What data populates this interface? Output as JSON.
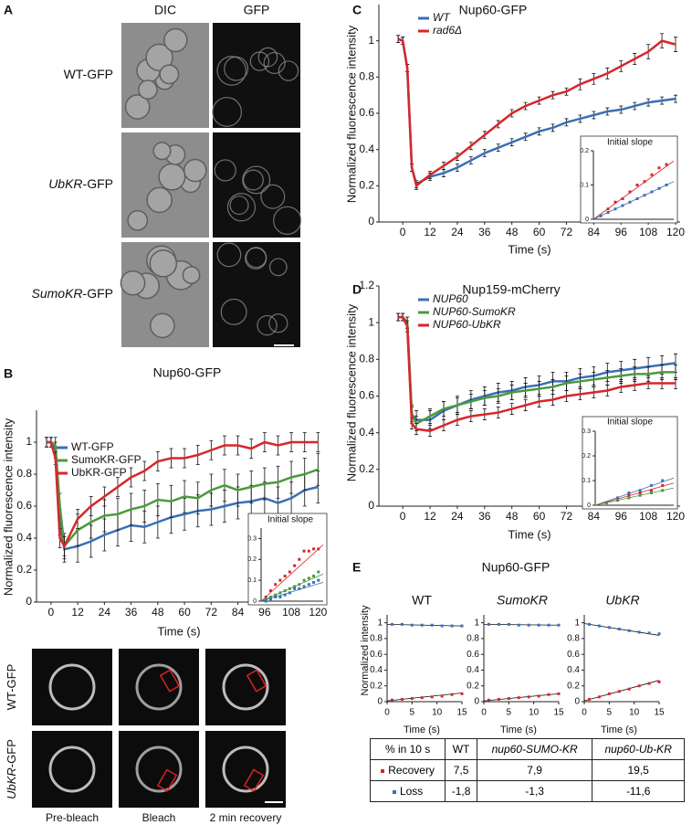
{
  "panel_letters": [
    "A",
    "B",
    "C",
    "D",
    "E"
  ],
  "panel_a": {
    "columns": [
      "DIC",
      "GFP"
    ],
    "rows": [
      {
        "italic": "",
        "rest": "WT-GFP"
      },
      {
        "italic": "UbKR",
        "rest": "-GFP"
      },
      {
        "italic": "SumoKR",
        "rest": "-GFP"
      }
    ]
  },
  "panel_b_images": {
    "rows": [
      {
        "italic": "",
        "rest": "WT-GFP"
      },
      {
        "italic": "UbKR",
        "rest": "-GFP"
      }
    ],
    "columns": [
      "Pre-bleach",
      "Bleach",
      "2 min recovery"
    ]
  },
  "panel_e_title": "Nup60-GFP",
  "table": {
    "header": [
      "% in 10 s",
      "WT",
      "nup60-SUMO-KR",
      "nup60-Ub-KR"
    ],
    "rows": [
      [
        "Recovery",
        "7,5",
        "7,9",
        "19,5"
      ],
      [
        "Loss",
        "-1,8",
        "-1,3",
        "-11,6"
      ]
    ],
    "row_colors": [
      "#d7262b",
      "#3b6fb6"
    ]
  },
  "chart_data": [
    {
      "type": "line",
      "title": "Nup60-GFP",
      "xlabel": "Time (s)",
      "ylabel": "Normalized fluorescence intensity",
      "xlim": [
        -6.5,
        121.5
      ],
      "ylim": [
        0,
        1.2
      ],
      "xticks": [
        0,
        12,
        24,
        36,
        48,
        60,
        72,
        84,
        96,
        108,
        120
      ],
      "yticks": [
        0,
        0.2,
        0.4,
        0.6,
        0.8,
        1
      ],
      "legend_italic": false,
      "x": [
        -2,
        0,
        2,
        4,
        6,
        12,
        18,
        24,
        30,
        36,
        42,
        48,
        54,
        60,
        66,
        72,
        78,
        84,
        90,
        96,
        102,
        108,
        114,
        120
      ],
      "series": [
        {
          "name": "WT-GFP",
          "color": "#3b6fb6",
          "values": [
            1.0,
            1.0,
            0.95,
            0.5,
            0.33,
            0.35,
            0.38,
            0.42,
            0.45,
            0.48,
            0.47,
            0.5,
            0.53,
            0.55,
            0.57,
            0.58,
            0.6,
            0.62,
            0.63,
            0.65,
            0.62,
            0.65,
            0.7,
            0.72
          ],
          "errors": [
            0.03,
            0.03,
            0.05,
            0.08,
            0.08,
            0.1,
            0.1,
            0.1,
            0.1,
            0.1,
            0.1,
            0.1,
            0.1,
            0.1,
            0.1,
            0.1,
            0.1,
            0.1,
            0.1,
            0.1,
            0.1,
            0.1,
            0.1,
            0.1
          ]
        },
        {
          "name": "SumoKR-GFP",
          "color": "#4a9b3c",
          "values": [
            1.0,
            1.0,
            0.98,
            0.6,
            0.35,
            0.45,
            0.5,
            0.54,
            0.55,
            0.58,
            0.6,
            0.64,
            0.63,
            0.66,
            0.65,
            0.7,
            0.73,
            0.7,
            0.72,
            0.74,
            0.75,
            0.78,
            0.8,
            0.83
          ],
          "errors": [
            0.03,
            0.03,
            0.05,
            0.08,
            0.08,
            0.1,
            0.1,
            0.1,
            0.1,
            0.1,
            0.1,
            0.1,
            0.1,
            0.1,
            0.1,
            0.1,
            0.1,
            0.1,
            0.1,
            0.1,
            0.1,
            0.1,
            0.1,
            0.1
          ]
        },
        {
          "name": "UbKR-GFP",
          "color": "#d7262b",
          "values": [
            1.0,
            1.0,
            0.9,
            0.4,
            0.35,
            0.52,
            0.6,
            0.66,
            0.72,
            0.78,
            0.82,
            0.88,
            0.9,
            0.9,
            0.92,
            0.95,
            0.98,
            0.98,
            0.96,
            1.0,
            0.98,
            1.0,
            1.0,
            1.0
          ],
          "errors": [
            0.03,
            0.03,
            0.04,
            0.06,
            0.06,
            0.06,
            0.06,
            0.06,
            0.06,
            0.06,
            0.06,
            0.06,
            0.06,
            0.06,
            0.06,
            0.06,
            0.06,
            0.06,
            0.06,
            0.06,
            0.06,
            0.06,
            0.06,
            0.06
          ]
        }
      ]
    },
    {
      "type": "scatter",
      "title": "Initial slope",
      "xlim": [
        0,
        13
      ],
      "ylim": [
        0,
        0.35
      ],
      "yticks": [
        0,
        0.1,
        0.2,
        0.3
      ],
      "x": [
        1,
        2,
        3,
        4,
        5,
        6,
        7,
        8,
        9,
        10,
        11,
        12
      ],
      "series": [
        {
          "color": "#d7262b",
          "values": [
            0.02,
            0.05,
            0.08,
            0.1,
            0.12,
            0.14,
            0.17,
            0.2,
            0.24,
            0.24,
            0.25,
            0.25
          ],
          "fit": [
            0,
            0.27
          ]
        },
        {
          "color": "#4a9b3c",
          "values": [
            0.01,
            0.02,
            0.03,
            0.04,
            0.05,
            0.06,
            0.07,
            0.08,
            0.1,
            0.11,
            0.12,
            0.14
          ],
          "fit": [
            0,
            0.13
          ]
        },
        {
          "color": "#3b6fb6",
          "values": [
            0.0,
            0.01,
            0.02,
            0.02,
            0.03,
            0.04,
            0.06,
            0.06,
            0.07,
            0.08,
            0.09,
            0.1
          ],
          "fit": [
            0,
            0.09
          ]
        }
      ]
    },
    {
      "type": "line",
      "title": "Nup60-GFP",
      "xlabel": "Time (s)",
      "ylabel": "Normalized fluorescence intensity",
      "xlim": [
        -10.5,
        122
      ],
      "ylim": [
        0,
        1.2
      ],
      "xticks": [
        0,
        12,
        24,
        36,
        48,
        60,
        72,
        84,
        96,
        108,
        120
      ],
      "yticks": [
        0,
        0.2,
        0.4,
        0.6,
        0.8,
        1
      ],
      "legend_italic": true,
      "x": [
        -2,
        0,
        2,
        4,
        6,
        12,
        18,
        24,
        30,
        36,
        42,
        48,
        54,
        60,
        66,
        72,
        78,
        84,
        90,
        96,
        102,
        108,
        114,
        120
      ],
      "series": [
        {
          "name": "WT",
          "color": "#3b6fb6",
          "values": [
            1.01,
            1.0,
            0.85,
            0.3,
            0.21,
            0.25,
            0.27,
            0.3,
            0.34,
            0.38,
            0.41,
            0.44,
            0.47,
            0.5,
            0.52,
            0.55,
            0.57,
            0.59,
            0.61,
            0.62,
            0.64,
            0.66,
            0.67,
            0.68
          ],
          "errors": [
            0.02,
            0.02,
            0.02,
            0.02,
            0.02,
            0.02,
            0.02,
            0.02,
            0.02,
            0.02,
            0.02,
            0.02,
            0.02,
            0.02,
            0.02,
            0.02,
            0.02,
            0.02,
            0.02,
            0.02,
            0.02,
            0.02,
            0.02,
            0.02
          ]
        },
        {
          "name": "rad6Δ",
          "color": "#d7262b",
          "values": [
            1.01,
            1.0,
            0.85,
            0.3,
            0.2,
            0.26,
            0.31,
            0.36,
            0.42,
            0.48,
            0.54,
            0.6,
            0.64,
            0.67,
            0.7,
            0.72,
            0.76,
            0.79,
            0.82,
            0.86,
            0.9,
            0.94,
            1.0,
            0.98
          ],
          "errors": [
            0.02,
            0.02,
            0.02,
            0.02,
            0.02,
            0.02,
            0.02,
            0.02,
            0.02,
            0.02,
            0.02,
            0.02,
            0.02,
            0.02,
            0.02,
            0.02,
            0.03,
            0.03,
            0.03,
            0.03,
            0.03,
            0.04,
            0.04,
            0.04
          ]
        }
      ]
    },
    {
      "type": "scatter",
      "title": "Initial slope",
      "xlim": [
        0,
        11
      ],
      "ylim": [
        0,
        0.2
      ],
      "yticks": [
        0,
        0.1,
        0.2
      ],
      "x": [
        1,
        2,
        3,
        4,
        5,
        6,
        7,
        8,
        9,
        10
      ],
      "series": [
        {
          "color": "#d7262b",
          "values": [
            0.01,
            0.03,
            0.05,
            0.06,
            0.08,
            0.1,
            0.11,
            0.13,
            0.15,
            0.16
          ],
          "fit": [
            0,
            0.17
          ]
        },
        {
          "color": "#3b6fb6",
          "values": [
            0.01,
            0.02,
            0.03,
            0.04,
            0.05,
            0.06,
            0.07,
            0.08,
            0.09,
            0.1
          ],
          "fit": [
            0,
            0.11
          ]
        }
      ]
    },
    {
      "type": "line",
      "title": "Nup159-mCherry",
      "xlabel": "Time (s)",
      "ylabel": "Normalized fluorescence intensity",
      "xlim": [
        -10.5,
        122
      ],
      "ylim": [
        0,
        1.2
      ],
      "xticks": [
        0,
        12,
        24,
        36,
        48,
        60,
        72,
        84,
        96,
        108,
        120
      ],
      "yticks": [
        0,
        0.2,
        0.4,
        0.6,
        0.8,
        1,
        1.2
      ],
      "legend_italic": true,
      "x": [
        -2,
        0,
        2,
        4,
        6,
        12,
        18,
        24,
        30,
        36,
        42,
        48,
        54,
        60,
        66,
        72,
        78,
        84,
        90,
        96,
        102,
        108,
        114,
        120
      ],
      "series": [
        {
          "name": "NUP60",
          "color": "#3b6fb6",
          "values": [
            1.03,
            1.03,
            1.0,
            0.5,
            0.47,
            0.47,
            0.52,
            0.55,
            0.58,
            0.6,
            0.62,
            0.63,
            0.65,
            0.66,
            0.68,
            0.68,
            0.7,
            0.71,
            0.73,
            0.74,
            0.75,
            0.76,
            0.77,
            0.78
          ],
          "errors": [
            0.02,
            0.02,
            0.03,
            0.05,
            0.05,
            0.05,
            0.05,
            0.05,
            0.05,
            0.05,
            0.05,
            0.05,
            0.05,
            0.05,
            0.05,
            0.05,
            0.05,
            0.05,
            0.05,
            0.05,
            0.05,
            0.05,
            0.05,
            0.05
          ]
        },
        {
          "name": "NUP60-SumoKR",
          "color": "#4a9b3c",
          "values": [
            1.03,
            1.03,
            1.0,
            0.5,
            0.45,
            0.49,
            0.53,
            0.55,
            0.57,
            0.59,
            0.6,
            0.62,
            0.63,
            0.64,
            0.65,
            0.67,
            0.68,
            0.69,
            0.7,
            0.71,
            0.72,
            0.72,
            0.73,
            0.73
          ],
          "errors": [
            0.02,
            0.02,
            0.03,
            0.04,
            0.04,
            0.04,
            0.04,
            0.04,
            0.04,
            0.04,
            0.04,
            0.04,
            0.04,
            0.04,
            0.04,
            0.04,
            0.04,
            0.04,
            0.04,
            0.04,
            0.04,
            0.04,
            0.04,
            0.04
          ]
        },
        {
          "name": "NUP60-UbKR",
          "color": "#d7262b",
          "values": [
            1.03,
            1.03,
            0.98,
            0.45,
            0.42,
            0.41,
            0.44,
            0.47,
            0.49,
            0.5,
            0.51,
            0.53,
            0.55,
            0.57,
            0.58,
            0.6,
            0.61,
            0.62,
            0.63,
            0.65,
            0.66,
            0.67,
            0.67,
            0.67
          ],
          "errors": [
            0.02,
            0.02,
            0.03,
            0.03,
            0.03,
            0.03,
            0.03,
            0.03,
            0.03,
            0.03,
            0.03,
            0.03,
            0.03,
            0.03,
            0.03,
            0.03,
            0.03,
            0.03,
            0.03,
            0.03,
            0.03,
            0.03,
            0.03,
            0.03
          ]
        }
      ]
    },
    {
      "type": "scatter",
      "title": "Initial slope",
      "xlim": [
        0,
        7
      ],
      "ylim": [
        0,
        0.3
      ],
      "yticks": [
        0,
        0.1,
        0.2,
        0.3
      ],
      "x": [
        1,
        2,
        3,
        4,
        5,
        6
      ],
      "series": [
        {
          "color": "#3b6fb6",
          "values": [
            0.01,
            0.03,
            0.05,
            0.06,
            0.08,
            0.1
          ],
          "fit": [
            0,
            0.11
          ]
        },
        {
          "color": "#d7262b",
          "values": [
            0.01,
            0.02,
            0.04,
            0.05,
            0.06,
            0.08
          ],
          "fit": [
            0,
            0.09
          ]
        },
        {
          "color": "#4a9b3c",
          "values": [
            0.01,
            0.02,
            0.03,
            0.04,
            0.05,
            0.06
          ],
          "fit": [
            0,
            0.07
          ]
        }
      ]
    },
    {
      "type": "scatter",
      "title": "WT",
      "xlabel": "Time (s)",
      "ylabel": "Normalized intensity",
      "xlim": [
        0,
        15
      ],
      "ylim": [
        0,
        1.1
      ],
      "xticks": [
        0,
        5,
        10,
        15
      ],
      "yticks": [
        0,
        0.2,
        0.4,
        0.6,
        0.8,
        1
      ],
      "x": [
        1,
        3,
        5,
        7,
        9,
        11,
        13,
        15
      ],
      "series": [
        {
          "color": "#3b6fb6",
          "values": [
            0.98,
            0.98,
            0.97,
            0.97,
            0.97,
            0.96,
            0.96,
            0.96
          ],
          "fit": [
            0.98,
            0.96
          ]
        },
        {
          "color": "#d7262b",
          "values": [
            0.02,
            0.03,
            0.04,
            0.05,
            0.06,
            0.07,
            0.09,
            0.1
          ],
          "fit": [
            0.01,
            0.11
          ]
        }
      ]
    },
    {
      "type": "scatter",
      "title": "SumoKR",
      "title_italic": true,
      "xlabel": "Time (s)",
      "xlim": [
        0,
        15
      ],
      "ylim": [
        0,
        1.1
      ],
      "xticks": [
        0,
        5,
        10,
        15
      ],
      "yticks": [
        0,
        0.2,
        0.4,
        0.6,
        0.8,
        1
      ],
      "x": [
        1,
        3,
        5,
        7,
        9,
        11,
        13,
        15
      ],
      "series": [
        {
          "color": "#3b6fb6",
          "values": [
            0.98,
            0.98,
            0.98,
            0.97,
            0.97,
            0.97,
            0.97,
            0.97
          ],
          "fit": [
            0.98,
            0.97
          ]
        },
        {
          "color": "#d7262b",
          "values": [
            0.02,
            0.03,
            0.04,
            0.05,
            0.06,
            0.07,
            0.09,
            0.1
          ],
          "fit": [
            0.01,
            0.1
          ]
        }
      ]
    },
    {
      "type": "scatter",
      "title": "UbKR",
      "title_italic": true,
      "xlabel": "Time (s)",
      "xlim": [
        0,
        15
      ],
      "ylim": [
        0,
        1.1
      ],
      "xticks": [
        0,
        5,
        10,
        15
      ],
      "yticks": [
        0,
        0.2,
        0.4,
        0.6,
        0.8,
        1
      ],
      "x": [
        1,
        3,
        5,
        7,
        9,
        11,
        13,
        15
      ],
      "series": [
        {
          "color": "#3b6fb6",
          "values": [
            0.98,
            0.96,
            0.94,
            0.92,
            0.9,
            0.88,
            0.87,
            0.86
          ],
          "fit": [
            0.99,
            0.84
          ]
        },
        {
          "color": "#d7262b",
          "values": [
            0.03,
            0.06,
            0.1,
            0.13,
            0.16,
            0.2,
            0.23,
            0.25
          ],
          "fit": [
            0.01,
            0.27
          ]
        }
      ]
    }
  ]
}
